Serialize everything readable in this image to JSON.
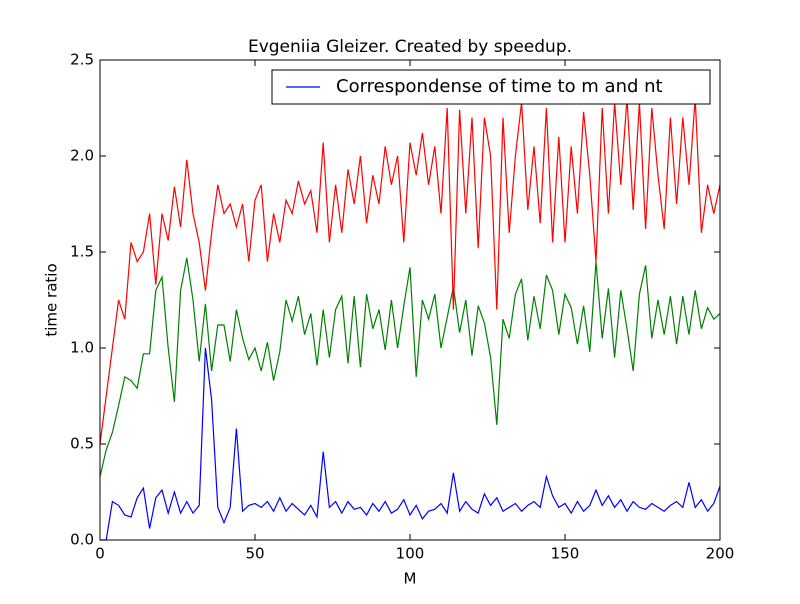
{
  "chart_data": {
    "type": "line",
    "title": "Evgeniia Gleizer. Created by speedup.",
    "x_label": "M",
    "y_label": "time ratio",
    "xlim": [
      0,
      200
    ],
    "ylim": [
      0,
      2.5
    ],
    "xticks": [
      0,
      50,
      100,
      150,
      200
    ],
    "yticks": [
      {
        "value": 0,
        "label": "0.0"
      },
      0.5,
      {
        "value": 1,
        "label": "1.0"
      },
      1.5,
      {
        "value": 2,
        "label": "2.0"
      },
      2.5
    ],
    "legend": "upper right",
    "x": [
      0,
      2,
      4,
      6,
      8,
      10,
      12,
      14,
      16,
      18,
      20,
      22,
      24,
      26,
      28,
      30,
      32,
      34,
      36,
      38,
      40,
      42,
      44,
      46,
      48,
      50,
      52,
      54,
      56,
      58,
      60,
      62,
      64,
      66,
      68,
      70,
      72,
      74,
      76,
      78,
      80,
      82,
      84,
      86,
      88,
      90,
      92,
      94,
      96,
      98,
      100,
      102,
      104,
      106,
      108,
      110,
      112,
      114,
      116,
      118,
      120,
      122,
      124,
      126,
      128,
      130,
      132,
      134,
      136,
      138,
      140,
      142,
      144,
      146,
      148,
      150,
      152,
      154,
      156,
      158,
      160,
      162,
      164,
      166,
      168,
      170,
      172,
      174,
      176,
      178,
      180,
      182,
      184,
      186,
      188,
      190,
      192,
      194,
      196,
      198,
      200
    ],
    "series": [
      {
        "name": "Correspondense of time to m and nt",
        "color": "#0000ff",
        "values": [
          0,
          0,
          0.2,
          0.18,
          0.13,
          0.12,
          0.22,
          0.27,
          0.06,
          0.22,
          0.26,
          0.14,
          0.25,
          0.14,
          0.2,
          0.14,
          0.18,
          1.0,
          0.73,
          0.17,
          0.09,
          0.17,
          0.58,
          0.15,
          0.18,
          0.19,
          0.17,
          0.2,
          0.15,
          0.22,
          0.15,
          0.19,
          0.16,
          0.13,
          0.18,
          0.12,
          0.46,
          0.17,
          0.2,
          0.14,
          0.2,
          0.16,
          0.17,
          0.13,
          0.19,
          0.15,
          0.2,
          0.14,
          0.16,
          0.21,
          0.13,
          0.18,
          0.11,
          0.15,
          0.16,
          0.19,
          0.14,
          0.35,
          0.15,
          0.2,
          0.16,
          0.14,
          0.24,
          0.18,
          0.22,
          0.15,
          0.17,
          0.19,
          0.15,
          0.18,
          0.2,
          0.17,
          0.33,
          0.23,
          0.17,
          0.19,
          0.14,
          0.2,
          0.15,
          0.18,
          0.26,
          0.18,
          0.23,
          0.17,
          0.21,
          0.15,
          0.2,
          0.17,
          0.16,
          0.19,
          0.17,
          0.15,
          0.18,
          0.2,
          0.17,
          0.3,
          0.17,
          0.21,
          0.15,
          0.19,
          0.28
        ]
      },
      {
        "color": "#008000",
        "values": [
          0.33,
          0.47,
          0.56,
          0.7,
          0.85,
          0.83,
          0.79,
          0.97,
          0.97,
          1.3,
          1.37,
          1.0,
          0.72,
          1.3,
          1.47,
          1.25,
          0.93,
          1.23,
          0.88,
          1.12,
          1.12,
          0.93,
          1.2,
          1.05,
          0.94,
          1.0,
          0.88,
          1.03,
          0.83,
          0.98,
          1.25,
          1.14,
          1.27,
          1.07,
          1.18,
          0.91,
          1.2,
          0.95,
          1.2,
          1.27,
          0.92,
          1.27,
          0.9,
          1.28,
          1.1,
          1.2,
          0.99,
          1.25,
          1.0,
          1.22,
          1.42,
          0.85,
          1.25,
          1.15,
          1.28,
          1.0,
          1.16,
          1.32,
          1.08,
          1.25,
          0.96,
          1.22,
          1.13,
          0.95,
          0.6,
          1.15,
          1.05,
          1.28,
          1.36,
          1.04,
          1.27,
          1.1,
          1.38,
          1.3,
          1.07,
          1.28,
          1.21,
          1.02,
          1.22,
          0.98,
          1.45,
          1.05,
          1.31,
          0.95,
          1.3,
          1.1,
          0.88,
          1.28,
          1.43,
          1.05,
          1.25,
          1.07,
          1.27,
          1.02,
          1.27,
          1.07,
          1.3,
          1.1,
          1.21,
          1.15,
          1.18
        ]
      },
      {
        "color": "#ff0000",
        "values": [
          0.5,
          0.75,
          1.0,
          1.25,
          1.15,
          1.55,
          1.45,
          1.5,
          1.7,
          1.33,
          1.7,
          1.56,
          1.84,
          1.63,
          1.98,
          1.7,
          1.55,
          1.3,
          1.6,
          1.85,
          1.7,
          1.75,
          1.63,
          1.75,
          1.45,
          1.77,
          1.85,
          1.45,
          1.7,
          1.55,
          1.77,
          1.7,
          1.87,
          1.75,
          1.82,
          1.6,
          2.07,
          1.55,
          1.85,
          1.6,
          1.93,
          1.75,
          2.0,
          1.65,
          1.9,
          1.75,
          2.05,
          1.85,
          2.0,
          1.55,
          2.07,
          1.9,
          2.12,
          1.85,
          2.05,
          1.7,
          2.25,
          1.2,
          2.24,
          1.7,
          2.2,
          1.52,
          2.2,
          2.0,
          1.2,
          2.2,
          1.6,
          2.0,
          2.28,
          1.72,
          2.05,
          1.65,
          2.25,
          1.55,
          2.1,
          1.55,
          2.05,
          1.7,
          2.23,
          1.9,
          1.45,
          2.25,
          1.7,
          2.28,
          1.85,
          2.3,
          1.72,
          2.28,
          1.62,
          2.25,
          1.9,
          1.62,
          2.2,
          1.75,
          2.2,
          1.85,
          2.3,
          1.6,
          1.85,
          1.7,
          1.85
        ]
      }
    ]
  }
}
